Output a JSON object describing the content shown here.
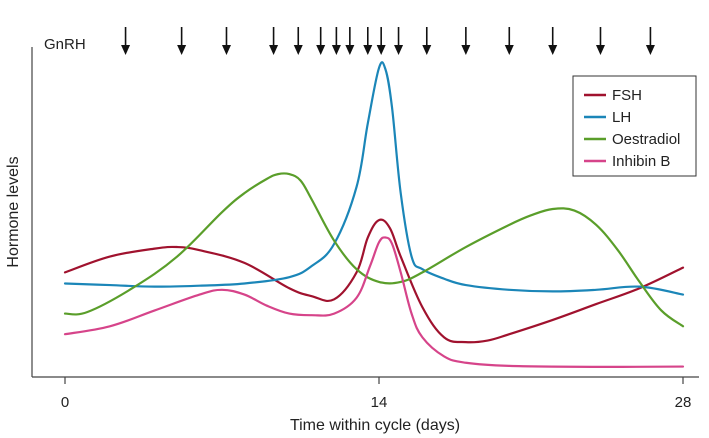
{
  "chart_data": {
    "type": "line",
    "title": "",
    "xlabel": "Time within cycle (days)",
    "ylabel": "Hormone levels",
    "xlim": [
      -0.1,
      28.3
    ],
    "ylim": [
      0,
      100
    ],
    "x_ticks": [
      0,
      14,
      28
    ],
    "x_tick_labels": [
      "0",
      "14",
      "28"
    ],
    "y_ticks_shown": false,
    "grid": false,
    "legend_position": "top-right",
    "pulse_marker_label": "GnRH",
    "pulse_times": [
      2.7,
      5.2,
      7.2,
      9.3,
      10.4,
      11.4,
      12.1,
      12.7,
      13.5,
      14.1,
      14.9,
      16.2,
      18.0,
      20.0,
      22.0,
      24.2,
      26.5
    ],
    "series": [
      {
        "name": "FSH",
        "color": "#a0122e",
        "x": [
          0,
          2,
          4,
          5,
          6,
          8,
          10,
          11,
          12,
          13,
          13.5,
          14,
          14.5,
          15,
          16,
          17,
          18,
          19,
          20,
          22,
          24,
          26,
          28
        ],
        "y": [
          33,
          38,
          40.5,
          41,
          40,
          36,
          28,
          25.5,
          24.5,
          33,
          44,
          49.5,
          47,
          38,
          22,
          12.5,
          11,
          11.5,
          13.5,
          18,
          23,
          28,
          34.5
        ]
      },
      {
        "name": "LH",
        "color": "#1b86b8",
        "x": [
          0,
          2,
          4,
          6,
          8,
          10,
          11,
          12,
          13,
          13.5,
          14,
          14.3,
          14.6,
          15,
          15.5,
          16,
          17,
          18,
          20,
          22,
          24,
          26,
          28
        ],
        "y": [
          29.5,
          29,
          28.5,
          28.8,
          29.5,
          31.5,
          35,
          42,
          60,
          80,
          97.5,
          97,
          85,
          58,
          38,
          34,
          31,
          29,
          27.5,
          27,
          27.5,
          28.5,
          26
        ]
      },
      {
        "name": "Oestradiol",
        "color": "#5a9e2a",
        "x": [
          0,
          1,
          3,
          5,
          7,
          8,
          9,
          9.5,
          10,
          10.5,
          11,
          12,
          13,
          14,
          15,
          16,
          18,
          20,
          21,
          22,
          23,
          24,
          25,
          26,
          27,
          28
        ],
        "y": [
          20,
          20.5,
          28,
          38,
          52,
          58,
          62.5,
          64,
          64,
          62,
          56,
          43,
          34,
          30,
          30,
          33,
          41,
          48,
          51,
          53,
          52.5,
          48,
          40,
          30,
          21,
          16
        ]
      },
      {
        "name": "Inhibin B",
        "color": "#d6448a",
        "x": [
          0,
          2,
          4,
          6,
          7,
          8,
          9,
          10,
          11,
          12,
          13,
          13.6,
          14,
          14.3,
          14.6,
          15,
          15.5,
          16,
          17,
          18,
          20,
          24,
          28
        ],
        "y": [
          13.5,
          16,
          21,
          26,
          27.5,
          26,
          22.5,
          20,
          19.5,
          20,
          25,
          35,
          42.5,
          44,
          42,
          33,
          20,
          12.5,
          6.5,
          4.5,
          3.5,
          3.2,
          3.3
        ]
      }
    ]
  }
}
